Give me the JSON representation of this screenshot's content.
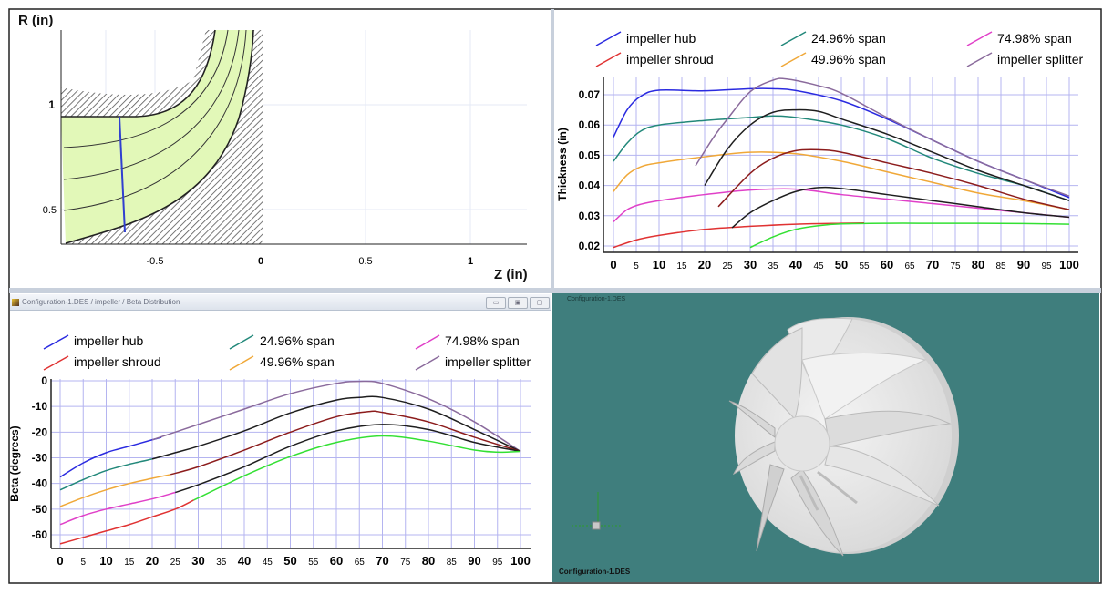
{
  "meridional": {
    "ylabel": "R (in)",
    "xlabel": "Z (in)",
    "xticks": [
      "-0.5",
      "0",
      "0.5",
      "1"
    ],
    "yticks": [
      "1",
      "0.5"
    ]
  },
  "legend": {
    "hub": "impeller hub",
    "shroud": "impeller shroud",
    "span25": "24.96% span",
    "span50": "49.96% span",
    "span75": "74.98% span",
    "splitter": "impeller splitter"
  },
  "beta_window": {
    "title": "Configuration-1.DES / impeller / Beta Distribution",
    "minimize": "▭",
    "restore": "▣",
    "close": "▢"
  },
  "viewer": {
    "top_label": "Configuration-1.DES",
    "bottom_label": "Configuration-1.DES",
    "background": "#3f7e7d"
  },
  "colors": {
    "hub": "#2a2ae0",
    "shroud": "#e03232",
    "span25": "#22887a",
    "span50": "#f0a838",
    "span75": "#e040c8",
    "splitter": "#8a6a9c",
    "black": "#1e1e1e",
    "darkred": "#8c1c1c",
    "green": "#33e033"
  },
  "chart_data": [
    {
      "type": "line",
      "title": "",
      "xlabel": "",
      "ylabel": "Thickness (in)",
      "xlim": [
        0,
        100
      ],
      "ylim": [
        0.018,
        0.076
      ],
      "xticks": [
        "0",
        "5",
        "10",
        "15",
        "20",
        "25",
        "30",
        "35",
        "40",
        "45",
        "50",
        "55",
        "60",
        "65",
        "70",
        "75",
        "80",
        "85",
        "90",
        "95",
        "100"
      ],
      "yticks": [
        "0.02",
        "0.03",
        "0.04",
        "0.05",
        "0.06",
        "0.07"
      ],
      "grid": true,
      "legend": "top",
      "series": [
        {
          "name": "impeller hub",
          "color": "#2a2ae0",
          "x": [
            0,
            3,
            6,
            10,
            20,
            30,
            35,
            40,
            50,
            60,
            70,
            80,
            90,
            100
          ],
          "y": [
            0.056,
            0.065,
            0.0695,
            0.0715,
            0.0713,
            0.072,
            0.072,
            0.0714,
            0.068,
            0.062,
            0.055,
            0.048,
            0.042,
            0.036
          ]
        },
        {
          "name": "24.96% span",
          "color": "#22887a",
          "x": [
            0,
            3,
            6,
            10,
            20,
            30,
            35,
            40,
            50,
            60,
            70,
            80,
            90,
            100
          ],
          "y": [
            0.048,
            0.054,
            0.058,
            0.06,
            0.0615,
            0.0625,
            0.063,
            0.0625,
            0.06,
            0.0555,
            0.049,
            0.044,
            0.04,
            0.035
          ]
        },
        {
          "name": "49.96% span",
          "color": "#f0a838",
          "x": [
            0,
            3,
            6,
            10,
            20,
            30,
            40,
            50,
            60,
            70,
            80,
            90,
            100
          ],
          "y": [
            0.038,
            0.0435,
            0.0462,
            0.0475,
            0.0495,
            0.051,
            0.0505,
            0.048,
            0.0445,
            0.041,
            0.0375,
            0.035,
            0.032
          ]
        },
        {
          "name": "74.98% span",
          "color": "#e040c8",
          "x": [
            0,
            3,
            6,
            10,
            20,
            30,
            40,
            50,
            60,
            70,
            80,
            90,
            100
          ],
          "y": [
            0.028,
            0.032,
            0.0338,
            0.035,
            0.037,
            0.0385,
            0.0388,
            0.037,
            0.0355,
            0.034,
            0.0325,
            0.031,
            0.0295
          ]
        },
        {
          "name": "impeller shroud",
          "color": "#e03232",
          "x": [
            0,
            5,
            10,
            20,
            30,
            40,
            50,
            55
          ],
          "y": [
            0.0195,
            0.022,
            0.0235,
            0.0255,
            0.0265,
            0.0272,
            0.0275,
            0.0276
          ]
        },
        {
          "name": "impeller splitter",
          "color": "#8a6a9c",
          "x": [
            18,
            22,
            25,
            30,
            35,
            38,
            45,
            50,
            60,
            70,
            80,
            90,
            100
          ],
          "y": [
            0.0465,
            0.056,
            0.062,
            0.071,
            0.0748,
            0.0752,
            0.073,
            0.0705,
            0.0625,
            0.055,
            0.048,
            0.042,
            0.0365
          ]
        },
        {
          "color": "#1e1e1e",
          "x": [
            20,
            25,
            30,
            35,
            40,
            45,
            50,
            60,
            70,
            80,
            90,
            100
          ],
          "y": [
            0.04,
            0.052,
            0.06,
            0.0642,
            0.065,
            0.0645,
            0.062,
            0.057,
            0.051,
            0.045,
            0.04,
            0.035
          ]
        },
        {
          "color": "#8c1c1c",
          "x": [
            23,
            30,
            35,
            40,
            45,
            50,
            60,
            70,
            80,
            90,
            100
          ],
          "y": [
            0.033,
            0.044,
            0.049,
            0.0515,
            0.0518,
            0.051,
            0.0475,
            0.044,
            0.04,
            0.0355,
            0.032
          ]
        },
        {
          "color": "#1e1e1e",
          "x": [
            26,
            30,
            35,
            40,
            45,
            50,
            60,
            70,
            80,
            90,
            100
          ],
          "y": [
            0.026,
            0.031,
            0.035,
            0.038,
            0.0393,
            0.039,
            0.037,
            0.035,
            0.033,
            0.031,
            0.0295
          ]
        },
        {
          "color": "#33e033",
          "x": [
            30,
            35,
            40,
            45,
            50,
            60,
            70,
            80,
            90,
            100
          ],
          "y": [
            0.0195,
            0.023,
            0.0255,
            0.0267,
            0.0273,
            0.0275,
            0.0275,
            0.0275,
            0.0274,
            0.0272
          ]
        }
      ]
    },
    {
      "type": "line",
      "title": "",
      "xlabel": "",
      "ylabel": "Beta (degrees)",
      "xlim": [
        0,
        100
      ],
      "ylim": [
        -66,
        0
      ],
      "xticks": [
        "0",
        "5",
        "10",
        "15",
        "20",
        "25",
        "30",
        "35",
        "40",
        "45",
        "50",
        "55",
        "60",
        "65",
        "70",
        "75",
        "80",
        "85",
        "90",
        "95",
        "100"
      ],
      "yticks": [
        "0",
        "-10",
        "-20",
        "-30",
        "-40",
        "-50",
        "-60"
      ],
      "grid": true,
      "legend": "top",
      "series": [
        {
          "name": "impeller hub",
          "color": "#2a2ae0",
          "x": [
            0,
            5,
            10,
            15,
            20,
            22
          ],
          "y": [
            -37.5,
            -32,
            -28,
            -25.5,
            -23,
            -22
          ]
        },
        {
          "name": "impeller splitter",
          "color": "#8a6a9c",
          "x": [
            20,
            25,
            30,
            40,
            50,
            60,
            65,
            70,
            80,
            90,
            100
          ],
          "y": [
            -23,
            -20,
            -17,
            -11,
            -5,
            -1,
            -0.2,
            -1,
            -7,
            -16,
            -27.5
          ]
        },
        {
          "name": "24.96% span",
          "color": "#22887a",
          "x": [
            0,
            5,
            10,
            15,
            20
          ],
          "y": [
            -42.5,
            -38.5,
            -35,
            -32.5,
            -30.5
          ]
        },
        {
          "color": "#1e1e1e",
          "x": [
            20,
            25,
            30,
            40,
            50,
            60,
            65,
            70,
            80,
            90,
            100
          ],
          "y": [
            -30.5,
            -28,
            -25.5,
            -19.5,
            -12.5,
            -7.5,
            -6.5,
            -6.5,
            -11,
            -19,
            -27.5
          ]
        },
        {
          "name": "49.96% span",
          "color": "#f0a838",
          "x": [
            0,
            5,
            10,
            15,
            20,
            24
          ],
          "y": [
            -49,
            -45.5,
            -42.5,
            -40,
            -38,
            -36.5
          ]
        },
        {
          "color": "#8c1c1c",
          "x": [
            24,
            30,
            40,
            50,
            60,
            67,
            70,
            80,
            90,
            100
          ],
          "y": [
            -36.5,
            -33.5,
            -27,
            -20,
            -14,
            -12,
            -12.3,
            -16,
            -22,
            -27.5
          ]
        },
        {
          "name": "74.98% span",
          "color": "#e040c8",
          "x": [
            0,
            5,
            10,
            15,
            20,
            25
          ],
          "y": [
            -56,
            -52.5,
            -50,
            -48,
            -46,
            -43.5
          ]
        },
        {
          "color": "#1e1e1e",
          "x": [
            25,
            30,
            40,
            50,
            60,
            70,
            80,
            90,
            100
          ],
          "y": [
            -43.5,
            -40.5,
            -33.5,
            -25.5,
            -19.5,
            -17,
            -19,
            -24,
            -27.5
          ]
        },
        {
          "name": "impeller shroud",
          "color": "#e03232",
          "x": [
            0,
            5,
            10,
            15,
            20,
            25,
            29
          ],
          "y": [
            -63.5,
            -61,
            -58.5,
            -56,
            -53,
            -50,
            -46.5
          ]
        },
        {
          "color": "#33e033",
          "x": [
            29,
            40,
            50,
            60,
            70,
            80,
            90,
            95,
            100
          ],
          "y": [
            -46.5,
            -37,
            -29.5,
            -24,
            -21.5,
            -23.5,
            -27,
            -27.8,
            -27.5
          ]
        }
      ]
    }
  ]
}
